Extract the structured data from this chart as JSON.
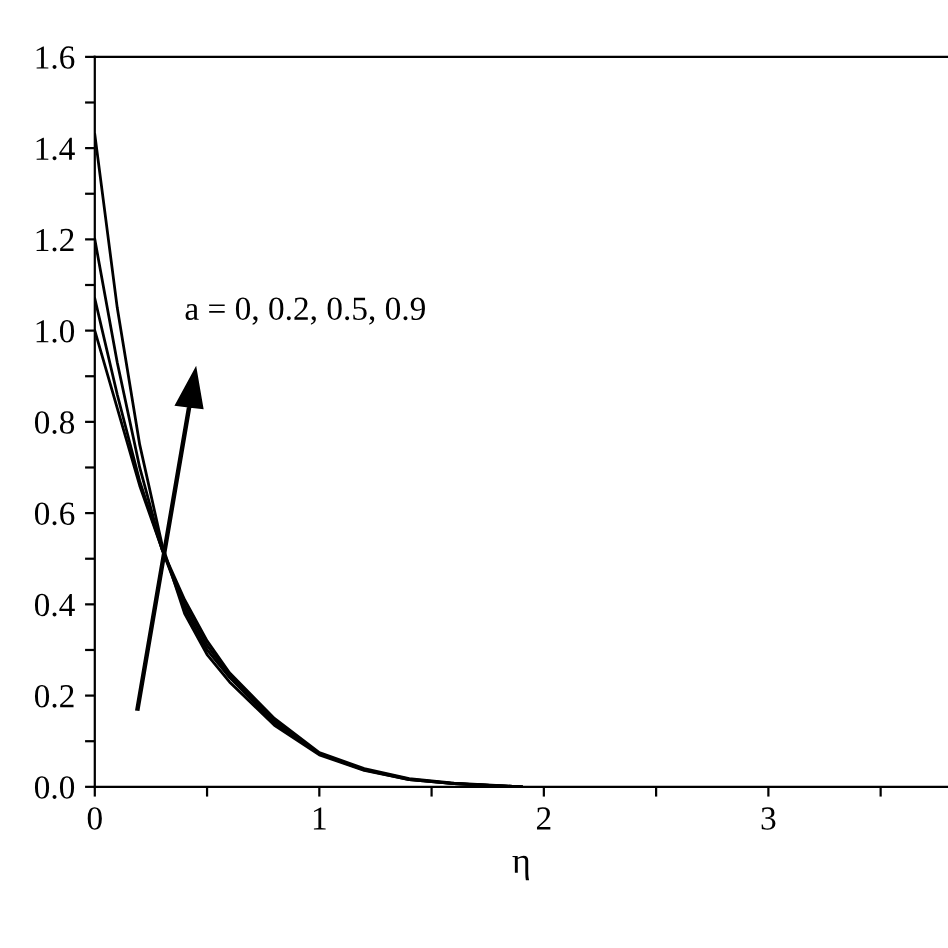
{
  "chart_data": {
    "type": "line",
    "xlabel": "η",
    "annotations": [
      "a = 0, 0.2, 0.5, 0.9"
    ],
    "x": [
      0,
      0.1,
      0.2,
      0.3,
      0.4,
      0.5,
      0.6,
      0.8,
      1.0,
      1.2,
      1.4,
      1.6,
      1.9
    ],
    "series": [
      {
        "color": "#000000",
        "values": [
          1.0,
          0.83,
          0.66,
          0.52,
          0.41,
          0.32,
          0.25,
          0.15,
          0.075,
          0.04,
          0.018,
          0.008,
          0
        ]
      },
      {
        "color": "#000000",
        "values": [
          1.07,
          0.86,
          0.67,
          0.52,
          0.4,
          0.31,
          0.245,
          0.145,
          0.073,
          0.038,
          0.017,
          0.007,
          0
        ]
      },
      {
        "color": "#000000",
        "values": [
          1.2,
          0.93,
          0.7,
          0.52,
          0.39,
          0.3,
          0.24,
          0.14,
          0.072,
          0.037,
          0.016,
          0.007,
          0
        ]
      },
      {
        "color": "#000000",
        "values": [
          1.43,
          1.05,
          0.75,
          0.53,
          0.38,
          0.29,
          0.23,
          0.135,
          0.07,
          0.036,
          0.016,
          0.007,
          0
        ]
      }
    ],
    "xlim": [
      0,
      3.8
    ],
    "ylim": [
      0,
      1.6
    ],
    "xticks": [
      0,
      {
        "value": 0.5,
        "label": null
      },
      1,
      {
        "value": 1.5,
        "label": null
      },
      2,
      {
        "value": 2.5,
        "label": null
      },
      3,
      {
        "value": 3.5,
        "label": null
      }
    ],
    "yticks": [
      {
        "value": 0,
        "label": "0.0"
      },
      {
        "value": 0.1,
        "label": null
      },
      {
        "value": 0.2,
        "label": "0.2"
      },
      {
        "value": 0.3,
        "label": null
      },
      {
        "value": 0.4,
        "label": "0.4"
      },
      {
        "value": 0.5,
        "label": null
      },
      {
        "value": 0.6,
        "label": "0.6"
      },
      {
        "value": 0.7,
        "label": null
      },
      {
        "value": 0.8,
        "label": "0.8"
      },
      {
        "value": 0.9,
        "label": null
      },
      {
        "value": 1.0,
        "label": "1.0"
      },
      {
        "value": 1.1,
        "label": null
      },
      {
        "value": 1.2,
        "label": "1.2"
      },
      {
        "value": 1.3,
        "label": null
      },
      {
        "value": 1.4,
        "label": "1.4"
      },
      {
        "value": 1.5,
        "label": null
      },
      {
        "value": 1.6,
        "label": "1.6"
      }
    ],
    "grid": false,
    "legend": false,
    "marker": "none",
    "line_style": "solid"
  }
}
